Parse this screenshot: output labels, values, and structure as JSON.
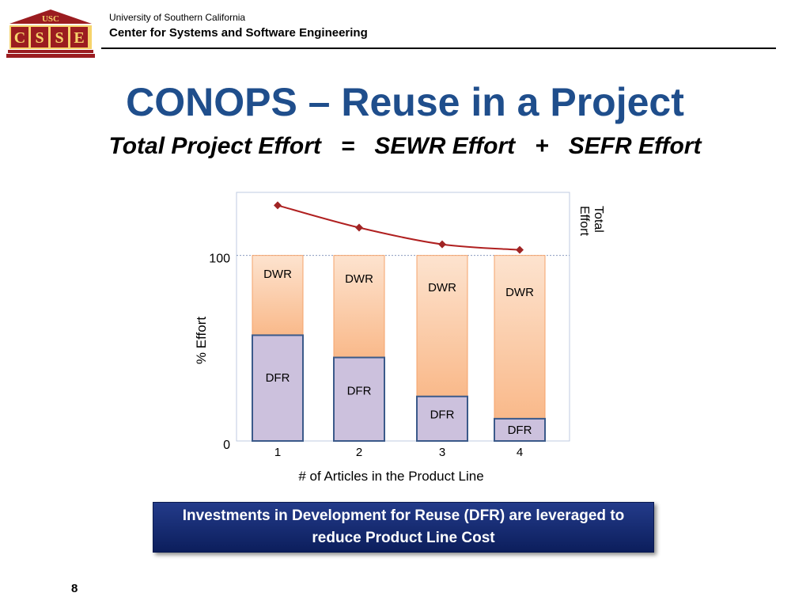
{
  "header": {
    "logo_text": "USC",
    "logo_letters": [
      "C",
      "S",
      "S",
      "E"
    ],
    "university": "University of Southern California",
    "center": "Center for Systems and Software Engineering"
  },
  "slide": {
    "title": "CONOPS – Reuse in a Project",
    "subtitle": "Total Project Effort   =   SEWR Effort   +   SEFR Effort",
    "callout": "Investments in Development for Reuse (DFR) are leveraged to reduce Product Line Cost",
    "page_number": "8"
  },
  "colors": {
    "title": "#1f4e8c",
    "dfr_fill": "#ccc1dd",
    "dfr_stroke": "#3b5a8a",
    "dwr_fill_top": "#fde3cf",
    "dwr_fill_bottom": "#f9b98a",
    "dwr_stroke": "#f4a36b",
    "line": "#b02020",
    "marker": "#a02424"
  },
  "chart_data": {
    "type": "bar",
    "stacked": true,
    "categories": [
      "1",
      "2",
      "3",
      "4"
    ],
    "series": [
      {
        "name": "DFR",
        "values": [
          57,
          45,
          24,
          12
        ]
      },
      {
        "name": "DWR",
        "values": [
          43,
          55,
          76,
          88
        ]
      }
    ],
    "line": {
      "name": "Total Effort",
      "values": [
        127,
        115,
        106,
        103
      ]
    },
    "xlabel": "# of Articles in the Product Line",
    "ylabel": "% Effort",
    "yticks": [
      "0",
      "100"
    ],
    "ylim": [
      0,
      134
    ],
    "reference_line": 100,
    "grid": false
  }
}
